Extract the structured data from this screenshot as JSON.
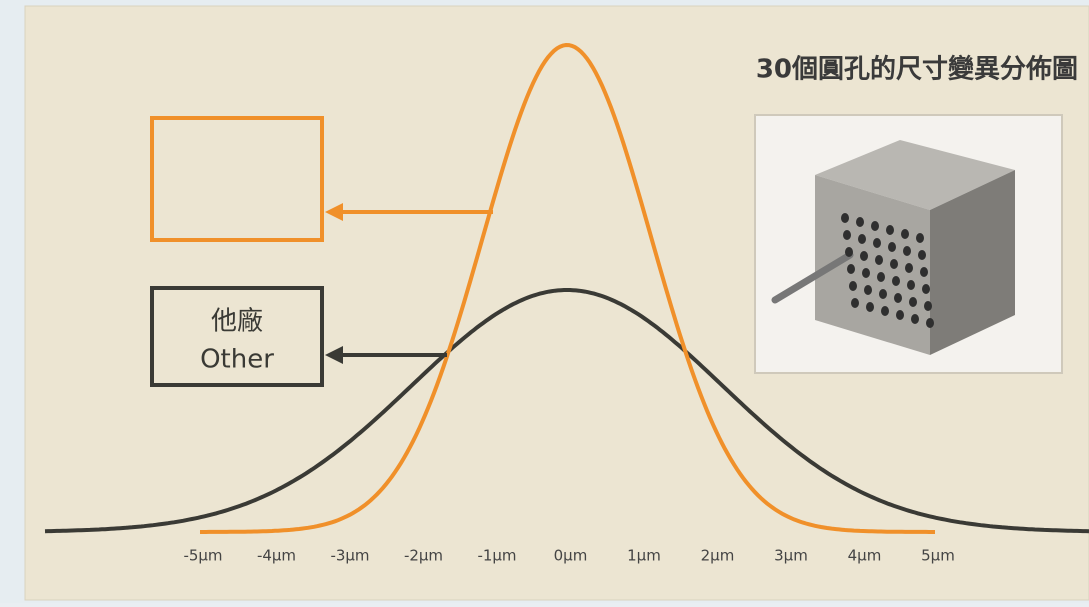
{
  "title": "30個圓孔的尺寸變異分佈圖",
  "other_box": {
    "line1": "他廠",
    "line2": "Other"
  },
  "axis_labels": [
    "-5μm",
    "-4μm",
    "-3μm",
    "-2μm",
    "-1μm",
    "0μm",
    "1μm",
    "2μm",
    "3μm",
    "4μm",
    "5μm"
  ]
}
